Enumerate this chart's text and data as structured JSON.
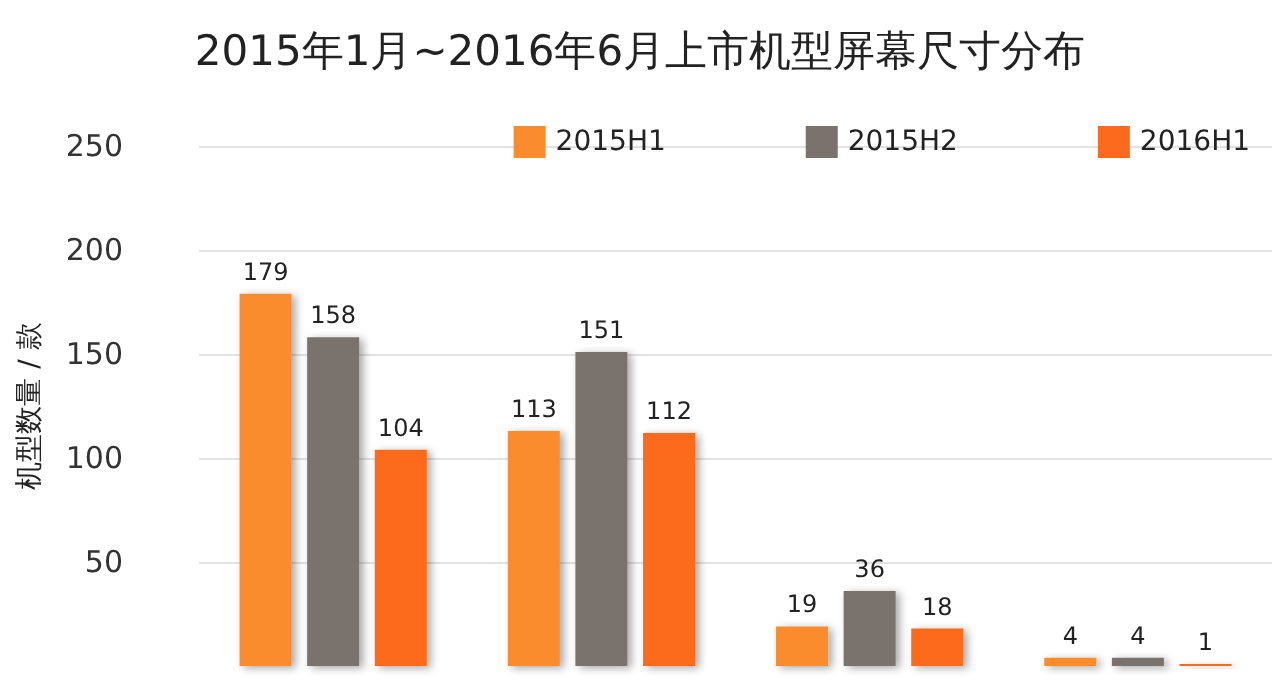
{
  "chart_data": {
    "type": "bar",
    "title": "2015年1月~2016年6月上市机型屏幕尺寸分布",
    "ylabel": "机型数量 / 款",
    "categories": [
      null,
      null,
      null,
      null
    ],
    "series": [
      {
        "name": "2015H1",
        "color": "#fb8c2e",
        "values": [
          179,
          113,
          19,
          4
        ]
      },
      {
        "name": "2015H2",
        "color": "#7a726d",
        "values": [
          158,
          151,
          36,
          4
        ]
      },
      {
        "name": "2016H1",
        "color": "#fc6a1e",
        "values": [
          104,
          112,
          18,
          1
        ]
      }
    ],
    "ylim": [
      0,
      250
    ],
    "yticks": [
      50,
      100,
      150,
      200,
      250
    ],
    "grid": "y",
    "legend": "top right",
    "data_labels": true
  }
}
